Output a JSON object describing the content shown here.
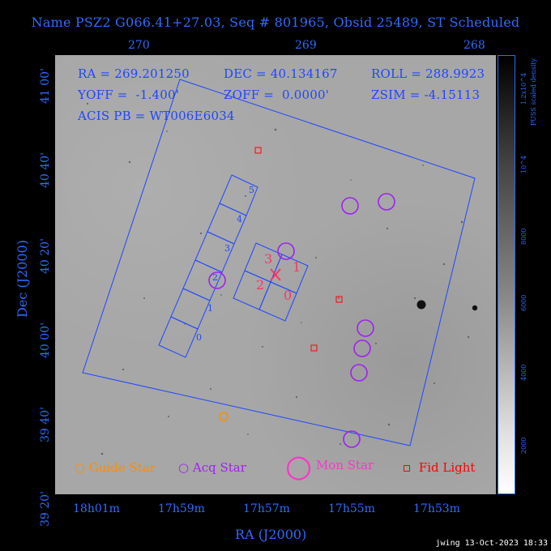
{
  "title": "Name PSZ2 G066.41+27.03, Seq # 801965, Obsid 25489, ST Scheduled",
  "axes": {
    "top_ticks": [
      "270",
      "269",
      "268"
    ],
    "bottom_ticks": [
      "18h01m",
      "17h59m",
      "17h57m",
      "17h55m",
      "17h53m"
    ],
    "left_ticks": [
      "41 00'",
      "40 40'",
      "40 20'",
      "40 00'",
      "39 40'",
      "39 20'"
    ],
    "x_label": "RA (J2000)",
    "y_label": "Dec (J2000)"
  },
  "info": {
    "ra": "RA = 269.201250",
    "dec": "DEC = 40.134167",
    "roll": "ROLL = 288.9923",
    "yoff": "YOFF =  -1.400'",
    "zoff": "ZOFF =  0.0000'",
    "zsim": "ZSIM = -4.15113",
    "acis": "ACIS PB = WT006E6034"
  },
  "legend": {
    "guide_star": "Guide Star",
    "acq_star": "Acq Star",
    "mon_star": "Mon Star",
    "fid_light": "Fid Light"
  },
  "ccd_labels": {
    "left": [
      "5",
      "4",
      "3",
      "2",
      "1",
      "0"
    ],
    "right": [
      "3",
      "1",
      "2",
      "0"
    ]
  },
  "colorbar": {
    "label": "PUSS scaled density",
    "top_label": "1.2x10^4",
    "ticks": [
      "10^4",
      "8000",
      "6000",
      "4000",
      "2000"
    ]
  },
  "footer": "jwing 13-Oct-2023 18:33",
  "colors": {
    "blue": "#2e6bff",
    "guide": "#ff8c00",
    "acq": "#a020f0",
    "mon": "#ff33cc",
    "fid": "#ff0000"
  }
}
